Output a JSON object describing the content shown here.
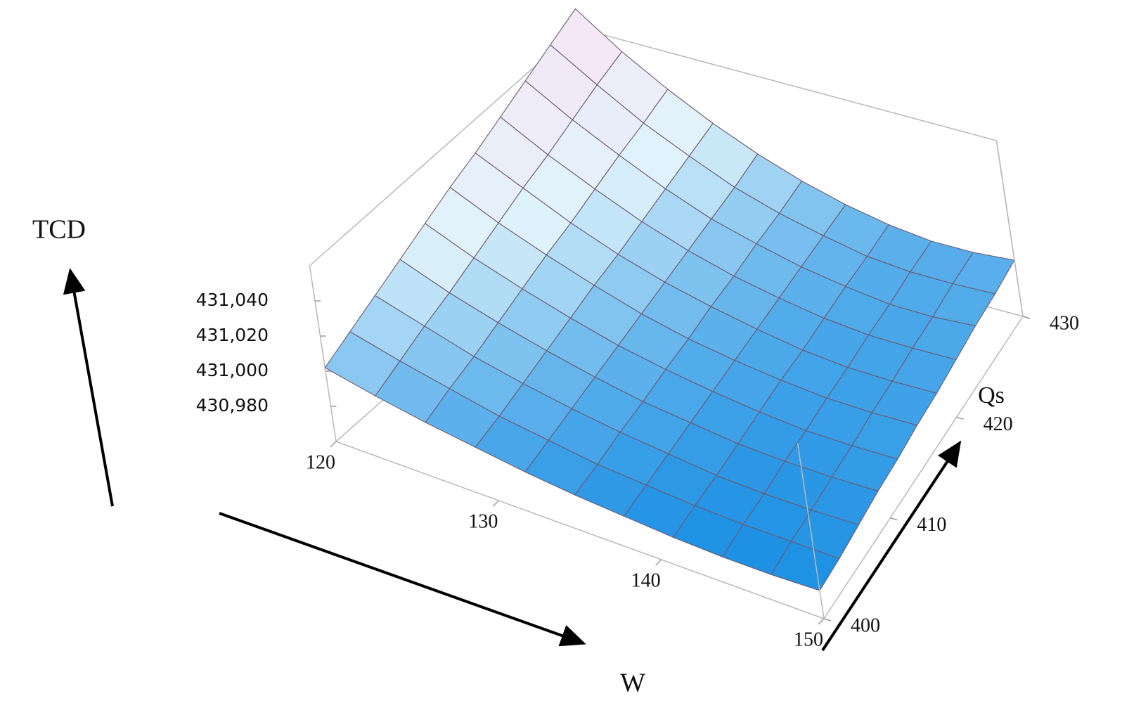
{
  "chart_data": {
    "type": "surface",
    "x_label": "W",
    "y_label": "Qs",
    "z_label": "TCD",
    "x": [
      120,
      123,
      126,
      129,
      132,
      135,
      138,
      141,
      144,
      147,
      150
    ],
    "y": [
      400,
      403,
      406,
      409,
      412,
      415,
      418,
      421,
      424,
      427,
      430
    ],
    "z": [
      [
        431002,
        430996,
        430991,
        430987,
        430983,
        430980,
        430978,
        430976,
        430975,
        430975,
        430976
      ],
      [
        431009,
        431002,
        430996,
        430990,
        430986,
        430982,
        430980,
        430978,
        430977,
        430977,
        430977
      ],
      [
        431016,
        431008,
        431000,
        430994,
        430989,
        430985,
        430982,
        430979,
        430978,
        430978,
        430979
      ],
      [
        431023,
        431013,
        431005,
        430998,
        430992,
        430987,
        430984,
        430981,
        430980,
        430980,
        430981
      ],
      [
        431030,
        431019,
        431010,
        431002,
        430995,
        430990,
        430986,
        430983,
        430981,
        430981,
        430982
      ],
      [
        431037,
        431025,
        431015,
        431006,
        430998,
        430992,
        430988,
        430985,
        430983,
        430983,
        430984
      ],
      [
        431043,
        431031,
        431019,
        431009,
        431001,
        430995,
        430990,
        430986,
        430984,
        430984,
        430985
      ],
      [
        431050,
        431036,
        431024,
        431013,
        431004,
        430997,
        430992,
        430988,
        430986,
        430986,
        430987
      ],
      [
        431057,
        431042,
        431029,
        431017,
        431007,
        431000,
        430994,
        430990,
        430987,
        430987,
        430989
      ],
      [
        431064,
        431048,
        431033,
        431021,
        431010,
        431002,
        430996,
        430991,
        430989,
        430989,
        430990
      ],
      [
        431071,
        431053,
        431038,
        431025,
        431014,
        431005,
        430998,
        430993,
        430990,
        430990,
        430992
      ]
    ],
    "xlim": [
      120,
      150
    ],
    "ylim": [
      400,
      430
    ],
    "zlim": [
      430960,
      431060
    ],
    "xticks": [
      120,
      130,
      140,
      150
    ],
    "yticks": [
      400,
      410,
      420,
      430
    ],
    "zticks": [
      {
        "value": 430980,
        "label": "430,980"
      },
      {
        "value": 431000,
        "label": "431,000"
      },
      {
        "value": 431020,
        "label": "431,020"
      },
      {
        "value": 431040,
        "label": "431,040"
      }
    ],
    "colormap": [
      "#1a8fe3",
      "#dff3fb",
      "#fbe4f5"
    ]
  }
}
